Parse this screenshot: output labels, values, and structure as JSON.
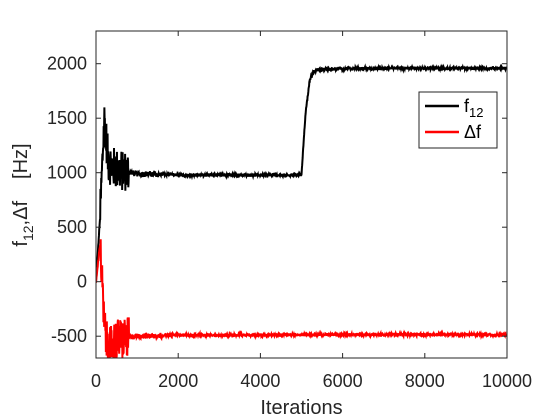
{
  "chart_data": {
    "type": "line",
    "title": "",
    "xlabel": "Iterations",
    "ylabel_parts": {
      "main": "f",
      "sub": "12",
      "rest": ",Δf",
      "unit": "[Hz]"
    },
    "xlim": [
      0,
      10000
    ],
    "ylim": [
      -700,
      2300
    ],
    "xticks": [
      0,
      2000,
      4000,
      6000,
      8000,
      10000
    ],
    "xtick_labels": [
      "0",
      "2000",
      "4000",
      "6000",
      "8000",
      "10000"
    ],
    "yticks": [
      -500,
      0,
      500,
      1000,
      1500,
      2000
    ],
    "ytick_labels": [
      "-500",
      "0",
      "500",
      "1000",
      "1500",
      "2000"
    ],
    "grid": false,
    "legend_position": "top-right",
    "series": [
      {
        "name": "f12",
        "legend_main": "f",
        "legend_sub": "12",
        "color": "#000000",
        "noise": 10,
        "points": [
          [
            0,
            0
          ],
          [
            100,
            600
          ],
          [
            200,
            1500
          ],
          [
            300,
            1100
          ],
          [
            400,
            1050
          ],
          [
            600,
            1020
          ],
          [
            1000,
            990
          ],
          [
            1500,
            985
          ],
          [
            2000,
            980
          ],
          [
            3000,
            980
          ],
          [
            4000,
            978
          ],
          [
            4900,
            978
          ],
          [
            5000,
            985
          ],
          [
            5100,
            1550
          ],
          [
            5200,
            1850
          ],
          [
            5300,
            1930
          ],
          [
            5400,
            1945
          ],
          [
            6000,
            1955
          ],
          [
            8000,
            1958
          ],
          [
            10000,
            1958
          ]
        ]
      },
      {
        "name": "Δf",
        "legend_main": "Δf",
        "legend_sub": "",
        "color": "#ff0000",
        "noise": 10,
        "points": [
          [
            0,
            0
          ],
          [
            100,
            350
          ],
          [
            200,
            -400
          ],
          [
            300,
            -650
          ],
          [
            400,
            -550
          ],
          [
            600,
            -520
          ],
          [
            1000,
            -500
          ],
          [
            1500,
            -495
          ],
          [
            2000,
            -490
          ],
          [
            4000,
            -490
          ],
          [
            5000,
            -487
          ],
          [
            6000,
            -485
          ],
          [
            8000,
            -485
          ],
          [
            10000,
            -485
          ]
        ]
      }
    ]
  }
}
